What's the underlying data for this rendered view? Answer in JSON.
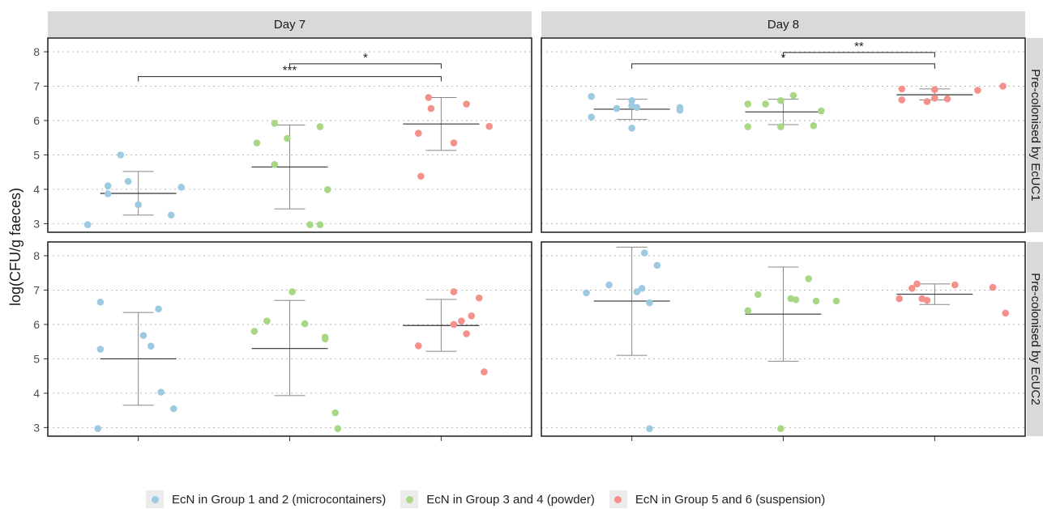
{
  "chart_data": {
    "type": "scatter",
    "ylabel": "log(CFU/g faeces)",
    "xlabel": "",
    "ylim": [
      2.75,
      8.4
    ],
    "yticks": [
      3,
      4,
      5,
      6,
      7,
      8
    ],
    "grid": "horizontal dotted",
    "legend_position": "bottom",
    "col_facets": [
      "Day 7",
      "Day 8"
    ],
    "row_facets": [
      "Pre-colonised by EcUC1",
      "Pre-colonised by EcUC2"
    ],
    "groups": [
      {
        "name": "EcN in Group 1 and 2 (microcontainers)",
        "color": "#9ecae1"
      },
      {
        "name": "EcN in Group 3 and 4 (powder)",
        "color": "#a8d886"
      },
      {
        "name": "EcN in Group 5 and 6 (suspension)",
        "color": "#f4918c"
      }
    ],
    "panels": [
      {
        "col": 0,
        "row": 0,
        "series": [
          {
            "mean": 3.88,
            "sd_low": 3.25,
            "sd_high": 4.52,
            "points": [
              [
                -0.2,
                2.97
              ],
              [
                -0.12,
                4.1
              ],
              [
                -0.12,
                3.87
              ],
              [
                -0.07,
                5.0
              ],
              [
                -0.04,
                4.23
              ],
              [
                0.0,
                3.55
              ],
              [
                0.13,
                3.25
              ],
              [
                0.17,
                4.06
              ]
            ]
          },
          {
            "mean": 4.65,
            "sd_low": 3.43,
            "sd_high": 5.87,
            "points": [
              [
                -0.13,
                5.35
              ],
              [
                -0.06,
                4.72
              ],
              [
                -0.06,
                5.92
              ],
              [
                -0.01,
                5.48
              ],
              [
                0.08,
                2.97
              ],
              [
                0.12,
                5.82
              ],
              [
                0.12,
                2.97
              ],
              [
                0.15,
                3.99
              ]
            ]
          },
          {
            "mean": 5.9,
            "sd_low": 5.13,
            "sd_high": 6.67,
            "points": [
              [
                -0.09,
                5.63
              ],
              [
                -0.08,
                4.38
              ],
              [
                -0.05,
                6.67
              ],
              [
                -0.04,
                6.35
              ],
              [
                0.05,
                5.35
              ],
              [
                0.1,
                6.48
              ],
              [
                0.19,
                5.83
              ]
            ]
          }
        ],
        "significance": [
          {
            "from": 1,
            "to": 2,
            "label": "*",
            "y": 7.65
          },
          {
            "from": 0,
            "to": 2,
            "label": "***",
            "y": 7.28
          }
        ]
      },
      {
        "col": 1,
        "row": 0,
        "series": [
          {
            "mean": 6.33,
            "sd_low": 6.03,
            "sd_high": 6.62,
            "points": [
              [
                -0.16,
                6.1
              ],
              [
                -0.16,
                6.7
              ],
              [
                -0.06,
                6.35
              ],
              [
                0.0,
                5.78
              ],
              [
                0.0,
                6.58
              ],
              [
                0.0,
                6.43
              ],
              [
                0.02,
                6.38
              ],
              [
                0.19,
                6.38
              ],
              [
                0.19,
                6.3
              ]
            ]
          },
          {
            "mean": 6.25,
            "sd_low": 5.88,
            "sd_high": 6.62,
            "points": [
              [
                -0.14,
                5.82
              ],
              [
                -0.14,
                6.48
              ],
              [
                -0.07,
                6.48
              ],
              [
                -0.01,
                6.58
              ],
              [
                -0.01,
                5.82
              ],
              [
                0.04,
                6.73
              ],
              [
                0.12,
                5.85
              ],
              [
                0.15,
                6.28
              ]
            ]
          },
          {
            "mean": 6.75,
            "sd_low": 6.6,
            "sd_high": 6.92,
            "points": [
              [
                -0.13,
                6.6
              ],
              [
                -0.13,
                6.92
              ],
              [
                -0.03,
                6.55
              ],
              [
                0.0,
                6.65
              ],
              [
                0.0,
                6.9
              ],
              [
                0.05,
                6.63
              ],
              [
                0.17,
                6.88
              ],
              [
                0.27,
                7.0
              ]
            ]
          }
        ],
        "significance": [
          {
            "from": 1,
            "to": 2,
            "label": "**",
            "y": 7.98
          },
          {
            "from": 0,
            "to": 2,
            "label": "*",
            "y": 7.65
          }
        ]
      },
      {
        "col": 0,
        "row": 1,
        "series": [
          {
            "mean": 5.0,
            "sd_low": 3.65,
            "sd_high": 6.35,
            "points": [
              [
                -0.16,
                2.97
              ],
              [
                -0.15,
                5.28
              ],
              [
                -0.15,
                6.65
              ],
              [
                0.02,
                5.68
              ],
              [
                0.05,
                5.37
              ],
              [
                0.08,
                6.45
              ],
              [
                0.09,
                4.03
              ],
              [
                0.14,
                3.55
              ]
            ]
          },
          {
            "mean": 5.3,
            "sd_low": 3.93,
            "sd_high": 6.7,
            "points": [
              [
                -0.14,
                5.8
              ],
              [
                -0.09,
                6.1
              ],
              [
                0.01,
                6.95
              ],
              [
                0.06,
                6.02
              ],
              [
                0.14,
                5.58
              ],
              [
                0.14,
                5.63
              ],
              [
                0.18,
                3.43
              ],
              [
                0.19,
                2.97
              ]
            ]
          },
          {
            "mean": 5.97,
            "sd_low": 5.22,
            "sd_high": 6.73,
            "points": [
              [
                -0.09,
                5.38
              ],
              [
                0.05,
                6.0
              ],
              [
                0.05,
                6.95
              ],
              [
                0.08,
                6.1
              ],
              [
                0.1,
                5.73
              ],
              [
                0.12,
                6.25
              ],
              [
                0.15,
                6.77
              ],
              [
                0.17,
                4.62
              ]
            ]
          }
        ],
        "significance": []
      },
      {
        "col": 1,
        "row": 1,
        "series": [
          {
            "mean": 6.68,
            "sd_low": 5.1,
            "sd_high": 8.25,
            "points": [
              [
                -0.18,
                6.92
              ],
              [
                -0.09,
                7.15
              ],
              [
                0.02,
                6.95
              ],
              [
                0.04,
                7.05
              ],
              [
                0.05,
                8.08
              ],
              [
                0.07,
                6.63
              ],
              [
                0.07,
                2.97
              ],
              [
                0.1,
                7.72
              ]
            ]
          },
          {
            "mean": 6.3,
            "sd_low": 4.93,
            "sd_high": 7.67,
            "points": [
              [
                -0.14,
                6.4
              ],
              [
                -0.1,
                6.87
              ],
              [
                -0.01,
                2.97
              ],
              [
                0.03,
                6.75
              ],
              [
                0.05,
                6.72
              ],
              [
                0.1,
                7.33
              ],
              [
                0.13,
                6.68
              ],
              [
                0.21,
                6.68
              ]
            ]
          },
          {
            "mean": 6.88,
            "sd_low": 6.58,
            "sd_high": 7.18,
            "points": [
              [
                -0.14,
                6.75
              ],
              [
                -0.09,
                7.05
              ],
              [
                -0.07,
                7.18
              ],
              [
                -0.05,
                6.75
              ],
              [
                -0.03,
                6.7
              ],
              [
                0.08,
                7.15
              ],
              [
                0.23,
                7.08
              ],
              [
                0.28,
                6.33
              ]
            ]
          }
        ],
        "significance": []
      }
    ]
  }
}
